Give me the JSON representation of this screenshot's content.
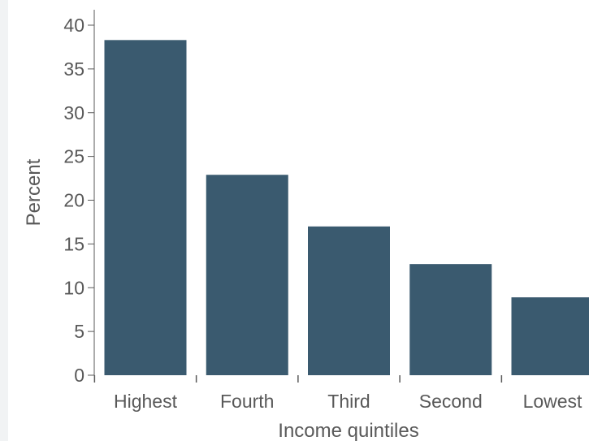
{
  "chart_data": {
    "type": "bar",
    "categories": [
      "Highest",
      "Fourth",
      "Third",
      "Second",
      "Lowest"
    ],
    "values": [
      38.3,
      22.9,
      17.0,
      12.7,
      8.9
    ],
    "xlabel": "Income quintiles",
    "ylabel": "Percent",
    "ylim": [
      0,
      40
    ],
    "yticks": [
      0,
      5,
      10,
      15,
      20,
      25,
      30,
      35,
      40
    ],
    "grid": false,
    "bar_color": "#3a5a6f",
    "axis_color": "#595959"
  }
}
